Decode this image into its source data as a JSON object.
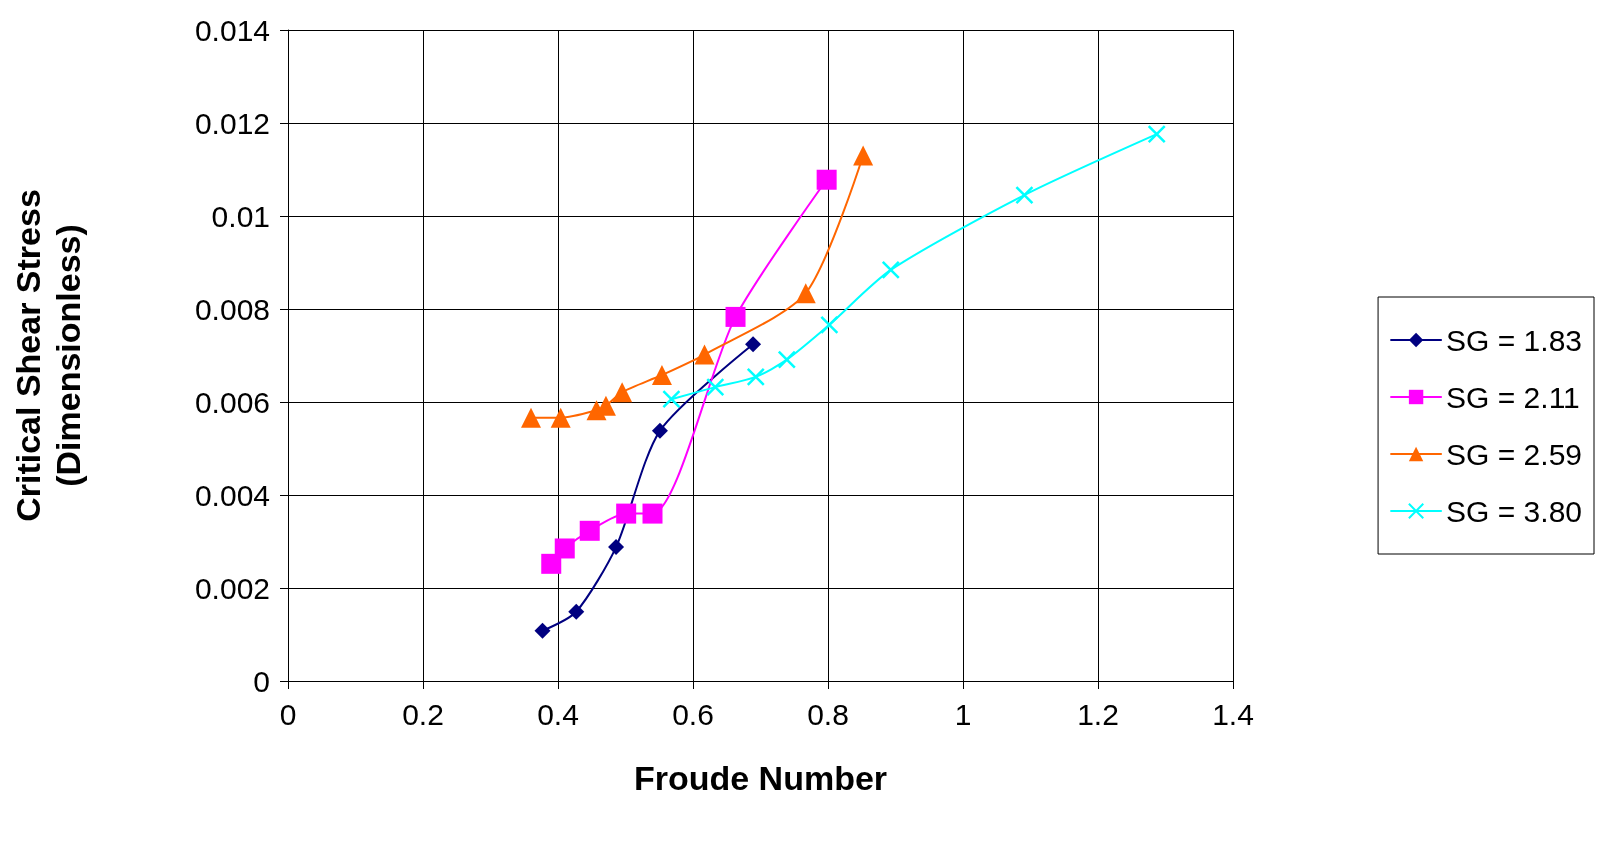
{
  "chart_data": {
    "type": "line",
    "xlabel": "Froude Number",
    "ylabel": "Critical Shear Stress\n(Dimensionless)",
    "xlim": [
      0,
      1.4
    ],
    "xticks": [
      0,
      0.2,
      0.4,
      0.6,
      0.8,
      1,
      1.2,
      1.4
    ],
    "ylim": [
      0,
      0.014
    ],
    "yticks": [
      0,
      0.002,
      0.004,
      0.006,
      0.008,
      0.01,
      0.012,
      0.014
    ],
    "grid": true,
    "legend": "right",
    "line_style": "solid",
    "series": [
      {
        "name": "SG = 1.83",
        "color": "#000080",
        "marker": "diamond",
        "x": [
          0.377,
          0.427,
          0.486,
          0.551,
          0.689
        ],
        "values": [
          0.00108,
          0.00149,
          0.00288,
          0.00538,
          0.00724
        ]
      },
      {
        "name": "SG = 2.11",
        "color": "#ff00ff",
        "marker": "square",
        "x": [
          0.39,
          0.41,
          0.447,
          0.501,
          0.54,
          0.663,
          0.798
        ],
        "values": [
          0.00252,
          0.00285,
          0.00323,
          0.0036,
          0.0036,
          0.00783,
          0.01078
        ]
      },
      {
        "name": "SG = 2.59",
        "color": "#ff6600",
        "marker": "triangle",
        "x": [
          0.36,
          0.404,
          0.457,
          0.471,
          0.495,
          0.554,
          0.617,
          0.767,
          0.852
        ],
        "values": [
          0.00566,
          0.00566,
          0.00582,
          0.00592,
          0.00621,
          0.00658,
          0.00702,
          0.00834,
          0.0113
        ]
      },
      {
        "name": "SG = 3.80",
        "color": "#00ffff",
        "marker": "cross",
        "x": [
          0.568,
          0.633,
          0.693,
          0.739,
          0.802,
          0.893,
          1.091,
          1.287
        ],
        "values": [
          0.00606,
          0.00632,
          0.00654,
          0.00691,
          0.00766,
          0.00884,
          0.01045,
          0.01176
        ]
      }
    ]
  }
}
